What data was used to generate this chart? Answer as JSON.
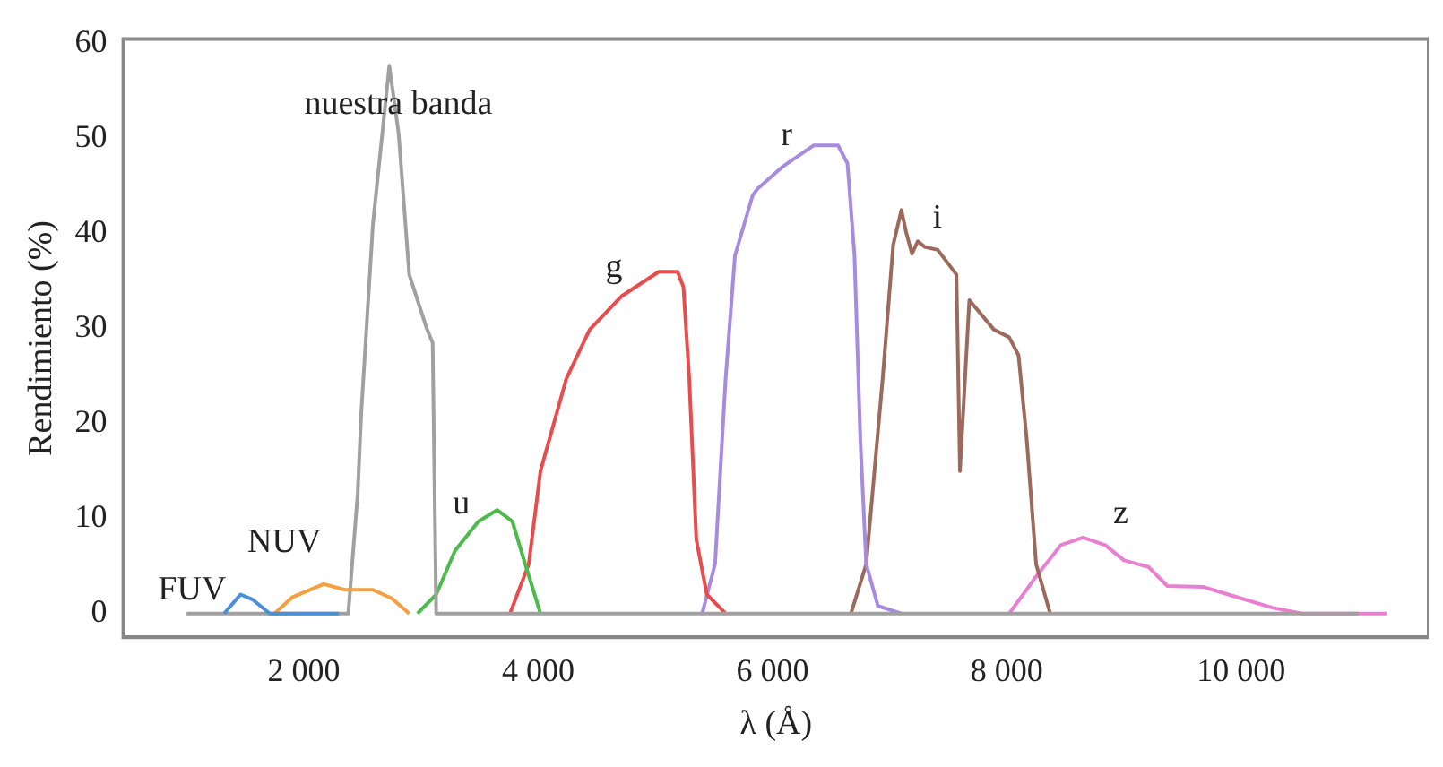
{
  "chart_data": {
    "type": "line",
    "xlabel": "λ (Å)",
    "ylabel": "Rendimiento (%)",
    "xlim": [
      460,
      11600
    ],
    "ylim": [
      -2.5,
      60.5
    ],
    "xticks": [
      {
        "value": 2000,
        "label": "2 000"
      },
      {
        "value": 4000,
        "label": "4 000"
      },
      {
        "value": 6000,
        "label": "6 000"
      },
      {
        "value": 8000,
        "label": "8 000"
      },
      {
        "value": 10000,
        "label": "10 000"
      }
    ],
    "yticks": [
      0,
      10,
      20,
      30,
      40,
      50,
      60
    ],
    "legend": false,
    "marker": "none",
    "line_style": "solid",
    "series": [
      {
        "name": "FUV",
        "color": "#4a90d9",
        "x": [
          1320,
          1460,
          1560,
          1710,
          2300
        ],
        "values": [
          0,
          2,
          1.5,
          0,
          0
        ]
      },
      {
        "name": "NUV",
        "color": "#f5a040",
        "x": [
          1750,
          1900,
          2170,
          2350,
          2590,
          2750,
          2900
        ],
        "values": [
          0,
          1.7,
          3.1,
          2.5,
          2.5,
          1.6,
          0
        ]
      },
      {
        "name": "nuestra banda",
        "color": "#a0a0a0",
        "x": [
          1000,
          2380,
          2460,
          2490,
          2590,
          2730,
          2810,
          2900,
          3050,
          3100,
          3130,
          11000
        ],
        "values": [
          0,
          0,
          12.6,
          21,
          41,
          57.7,
          50.5,
          35.7,
          30,
          28.5,
          0,
          0
        ]
      },
      {
        "name": "u",
        "color": "#4cbb4c",
        "x": [
          2970,
          3130,
          3290,
          3490,
          3650,
          3780,
          3890,
          4020
        ],
        "values": [
          0,
          2,
          6.6,
          9.7,
          10.9,
          9.7,
          5.2,
          0
        ]
      },
      {
        "name": "g",
        "color": "#e84c4c",
        "x": [
          3760,
          3920,
          4020,
          4240,
          4440,
          4710,
          5030,
          5190,
          5240,
          5290,
          5350,
          5440,
          5600
        ],
        "values": [
          0,
          5.2,
          15,
          24.7,
          29.9,
          33.4,
          36,
          36,
          34.4,
          24.7,
          7.8,
          2,
          0
        ]
      },
      {
        "name": "r",
        "color": "#a78be0",
        "x": [
          5400,
          5510,
          5600,
          5680,
          5830,
          5870,
          6080,
          6350,
          6560,
          6640,
          6700,
          6750,
          6800,
          6900,
          7100
        ],
        "values": [
          0,
          5.2,
          24.7,
          37.7,
          44,
          44.7,
          47,
          49.3,
          49.3,
          47.4,
          37.7,
          18.3,
          5.2,
          0.8,
          0
        ]
      },
      {
        "name": "i",
        "color": "#9b6a5a",
        "x": [
          6670,
          6800,
          6940,
          7030,
          7100,
          7140,
          7190,
          7240,
          7300,
          7410,
          7570,
          7600,
          7680,
          7890,
          8020,
          8100,
          8170,
          8250,
          8370
        ],
        "values": [
          0,
          5.2,
          24.7,
          38.8,
          42.5,
          40.2,
          37.9,
          39.2,
          38.6,
          38.3,
          35.7,
          15,
          33,
          29.9,
          29.1,
          27.2,
          18.3,
          5.2,
          0
        ]
      },
      {
        "name": "z",
        "color": "#e87fd0",
        "x": [
          8020,
          8250,
          8460,
          8650,
          8840,
          9000,
          9210,
          9370,
          9680,
          9890,
          10270,
          10520,
          11240
        ],
        "values": [
          0,
          3.9,
          7.2,
          8,
          7.2,
          5.6,
          4.9,
          2.9,
          2.8,
          2,
          0.6,
          0,
          0
        ]
      }
    ]
  }
}
